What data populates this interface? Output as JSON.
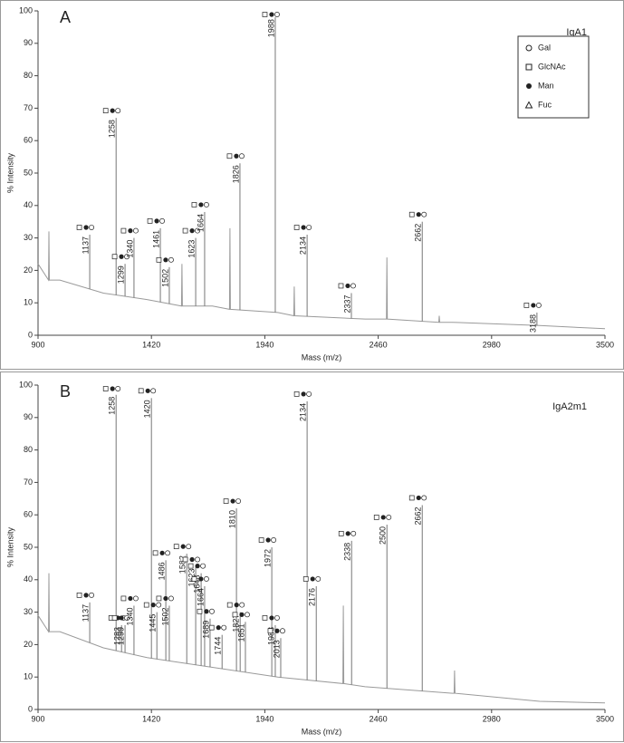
{
  "chart_data": [
    {
      "type": "line",
      "label": "A",
      "title": "IgA1",
      "x_label": "Mass (m/z)",
      "y_label": "% Intensity",
      "xlim": [
        900,
        3500
      ],
      "xticks": [
        900,
        1420,
        1940,
        2460,
        2980,
        3500
      ],
      "ylim": [
        0,
        100
      ],
      "yticks": [
        0,
        10,
        20,
        30,
        40,
        50,
        60,
        70,
        80,
        90,
        100
      ],
      "series": [
        {
          "color": "#9a9a9a",
          "x": [
            900,
            948,
            950,
            952,
            1000,
            1200,
            1400,
            1558,
            1560,
            1562,
            1700,
            1778,
            1780,
            1782,
            2000,
            2073,
            2075,
            2077,
            2400,
            2498,
            2500,
            2502,
            2738,
            2740,
            2742,
            2800,
            3200,
            3500
          ],
          "values": [
            22,
            17,
            32,
            17,
            17,
            13,
            11,
            9,
            22,
            9,
            9,
            8,
            33,
            8,
            7,
            6,
            15,
            6,
            5,
            5,
            24,
            5,
            4,
            6,
            4,
            4,
            3,
            2
          ]
        }
      ],
      "peaks": {
        "color": "#777777",
        "x": [
          1137,
          1258,
          1299,
          1340,
          1461,
          1502,
          1623,
          1664,
          1826,
          1988,
          2134,
          2337,
          2662,
          3188
        ],
        "values": [
          31,
          67,
          22,
          30,
          33,
          21,
          30,
          38,
          53,
          98,
          31,
          13,
          35,
          7
        ]
      },
      "legend": {
        "position": "top-right",
        "items": [
          "Gal",
          "GlcNAc",
          "Man",
          "Fuc"
        ]
      }
    },
    {
      "type": "line",
      "label": "B",
      "title": "IgA2m1",
      "x_label": "Mass (m/z)",
      "y_label": "% Intensity",
      "xlim": [
        900,
        3500
      ],
      "xticks": [
        900,
        1420,
        1940,
        2460,
        2980,
        3500
      ],
      "ylim": [
        0,
        100
      ],
      "yticks": [
        0,
        10,
        20,
        30,
        40,
        50,
        60,
        70,
        80,
        90,
        100
      ],
      "series": [
        {
          "color": "#9a9a9a",
          "x": [
            900,
            948,
            950,
            952,
            1000,
            1200,
            1400,
            1700,
            2000,
            2298,
            2300,
            2302,
            2400,
            2800,
            2808,
            2810,
            2812,
            3200,
            3500
          ],
          "values": [
            29,
            24,
            42,
            24,
            24,
            19,
            16,
            13,
            10,
            8,
            32,
            8,
            7,
            5,
            5,
            12,
            5,
            2.5,
            2
          ]
        }
      ],
      "peaks": {
        "color": "#777777",
        "x": [
          1137,
          1258,
          1283,
          1299,
          1340,
          1420,
          1445,
          1486,
          1502,
          1582,
          1623,
          1648,
          1664,
          1689,
          1744,
          1810,
          1827,
          1851,
          1972,
          1988,
          2013,
          2134,
          2176,
          2338,
          2500,
          2662
        ],
        "values": [
          33,
          97,
          26,
          26,
          32,
          96,
          30,
          46,
          32,
          48,
          44,
          42,
          38,
          28,
          23,
          62,
          30,
          27,
          50,
          26,
          22,
          95,
          38,
          52,
          57,
          63
        ]
      }
    }
  ]
}
